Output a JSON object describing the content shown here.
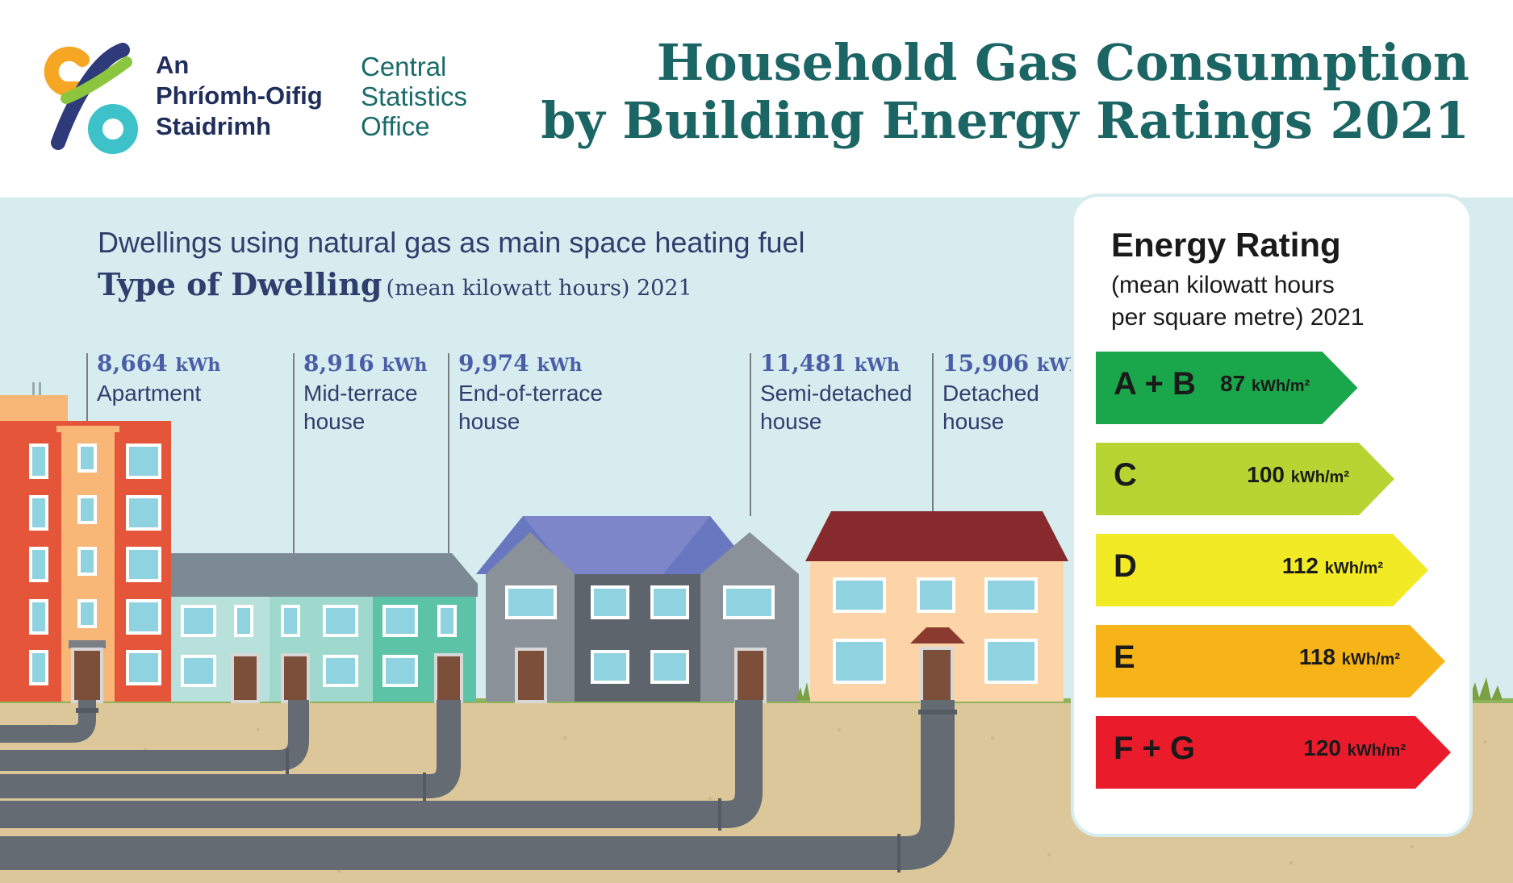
{
  "header": {
    "logo_irish": [
      "An",
      "Phríomh-Oifig",
      "Staidrimh"
    ],
    "logo_english": [
      "Central",
      "Statistics",
      "Office"
    ],
    "title_lines": [
      "Household Gas Consumption",
      "by Building Energy Ratings 2021"
    ]
  },
  "dwelling_section": {
    "subtitle": "Dwellings using natural gas as main space heating fuel",
    "heading_bold": "Type of Dwelling",
    "heading_rest": "(mean kilowatt hours) 2021"
  },
  "rating_section": {
    "title": "Energy Rating",
    "subtitle_lines": [
      "(mean kilowatt hours",
      "per square metre) 2021"
    ]
  },
  "colors": {
    "teal_title": "#1b6564",
    "navy_text": "#2e3f6e",
    "value_blue": "#4a5ea8",
    "sky": "#d6ecee",
    "ground": "#dcc79a",
    "pipe": "#646b73",
    "rating_ab": "#1aa64a",
    "rating_c": "#b8d432",
    "rating_d": "#f2ea25",
    "rating_e": "#f7b418",
    "rating_fg": "#ea1c2c"
  },
  "chart_data": [
    {
      "type": "bar",
      "categories": [
        "Apartment",
        "Mid-terrace house",
        "End-of-terrace house",
        "Semi-detached house",
        "Detached house"
      ],
      "category_lines": [
        [
          "Apartment"
        ],
        [
          "Mid-terrace",
          "house"
        ],
        [
          "End-of-terrace",
          "house"
        ],
        [
          "Semi-detached",
          "house"
        ],
        [
          "Detached",
          "house"
        ]
      ],
      "values": [
        8664,
        8916,
        9974,
        11481,
        15906
      ],
      "value_labels": [
        "8,664",
        "8,916",
        "9,974",
        "11,481",
        "15,906"
      ],
      "unit": "kWh",
      "title": "Type of Dwelling (mean kilowatt hours) 2021"
    },
    {
      "type": "bar",
      "orientation": "horizontal",
      "categories": [
        "A + B",
        "C",
        "D",
        "E",
        "F + G"
      ],
      "values": [
        87,
        100,
        112,
        118,
        120
      ],
      "value_labels": [
        "87",
        "100",
        "112",
        "118",
        "120"
      ],
      "unit": "kWh/m²",
      "colors": [
        "#1aa64a",
        "#b8d432",
        "#f2ea25",
        "#f7b418",
        "#ea1c2c"
      ],
      "title": "Energy Rating (mean kilowatt hours per square metre) 2021"
    }
  ]
}
